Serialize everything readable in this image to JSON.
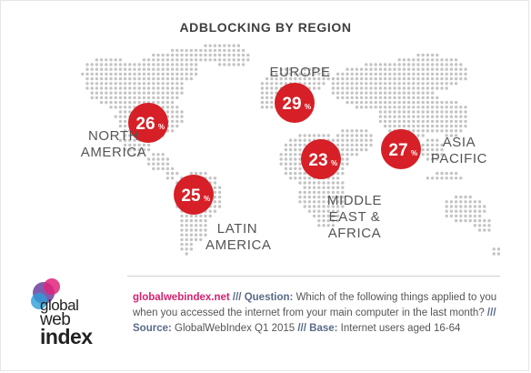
{
  "title": "ADBLOCKING BY REGION",
  "chart_data": {
    "type": "map",
    "title": "ADBLOCKING BY REGION",
    "unit": "%",
    "regions": [
      {
        "name": "NORTH AMERICA",
        "value": 26
      },
      {
        "name": "EUROPE",
        "value": 29
      },
      {
        "name": "ASIA PACIFIC",
        "value": 27
      },
      {
        "name": "LATIN AMERICA",
        "value": 25
      },
      {
        "name": "MIDDLE EAST & AFRICA",
        "value": 23
      }
    ]
  },
  "labels": {
    "na": "NORTH\nAMERICA",
    "eu": "EUROPE",
    "ap": "ASIA\nPACIFIC",
    "la": "LATIN\nAMERICA",
    "me": "MIDDLE\nEAST &\nAFRICA"
  },
  "footer": {
    "site": "globalwebindex.net",
    "sep1": " /// ",
    "question_label": "Question:",
    "question": " Which of the following things applied to you when you accessed the internet from your main computer in the last month?",
    "sep2": " /// ",
    "source_label": "Source:",
    "source": " GlobalWebIndex Q1 2015",
    "sep3": " /// ",
    "base_label": "Base:",
    "base": " Internet users aged 16-64"
  },
  "logo": {
    "line1": "global",
    "line2": "web",
    "line3": "index"
  },
  "colors": {
    "bubble": "#d61f26",
    "dots": "#c4c4c4",
    "accent": "#d6226e"
  }
}
